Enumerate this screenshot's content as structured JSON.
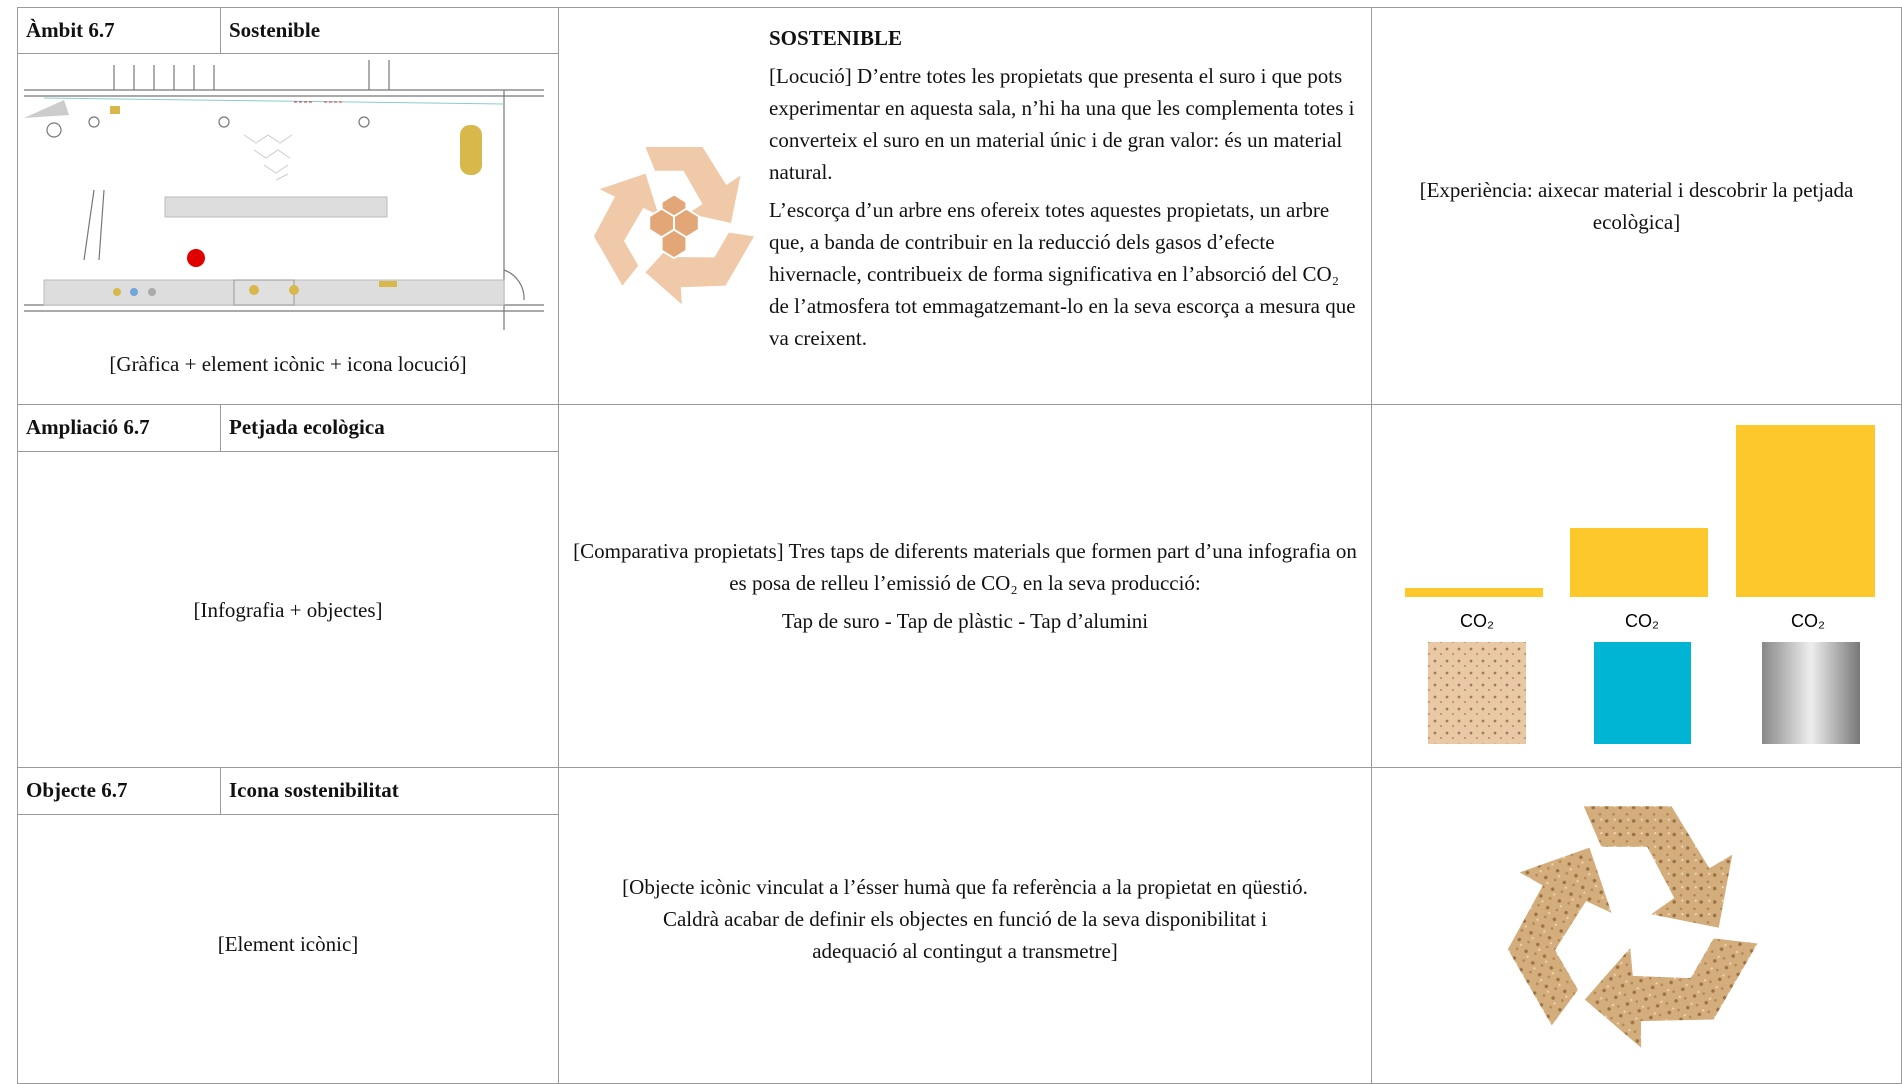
{
  "rows": [
    {
      "label": "Àmbit 6.7",
      "title": "Sostenible",
      "caption": "[Gràfica + element icònic + icona locució]",
      "heading": "SOSTENIBLE",
      "paragraphs": [
        "[Locució] D’entre totes les propietats que presenta el suro i que pots experimentar en aquesta sala, n’hi ha una que les complementa totes i converteix el suro en un material únic i de gran valor: és un material natural.",
        "L’escorça d’un arbre ens ofereix totes aquestes propietats, un arbre que, a banda de contribuir en la reducció dels gasos d’efecte hivernacle, contribueix de forma significativa en l’absorció del CO₂ de l’atmosfera tot emmagatzemant-lo en la seva escorça a mesura que va creixent."
      ],
      "right": "[Experiència: aixecar material i descobrir la petjada ecològica]"
    },
    {
      "label": "Ampliació 6.7",
      "title": "Petjada ecològica",
      "caption": "[Infografia + objectes]",
      "paragraphs": [
        "[Comparativa propietats] Tres taps de diferents materials que formen part d’una infografia on es posa de relleu l’emissió de CO₂ en la seva producció:",
        "Tap de suro - Tap de plàstic - Tap d’alumini"
      ],
      "infographic_labels": [
        "CO₂",
        "CO₂",
        "CO₂"
      ]
    },
    {
      "label": "Objecte 6.7",
      "title": "Icona sostenibilitat",
      "caption": "[Element icònic]",
      "paragraphs": [
        "[Objecte icònic vinculat a l’ésser humà que fa referència a la propietat en qüestió. Caldrà acabar de definir els objectes en funció de la seva disponibilitat i adequació al contingut a transmetre]"
      ]
    }
  ]
}
